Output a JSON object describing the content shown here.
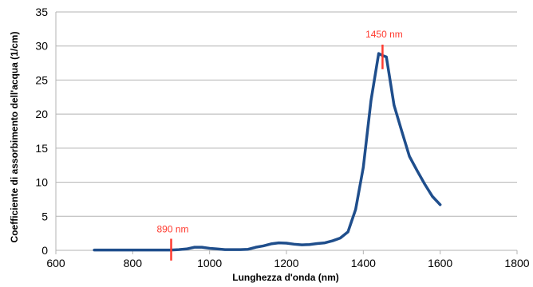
{
  "chart_data": {
    "type": "line",
    "xlabel": "Lunghezza d'onda (nm)",
    "ylabel": "Coefficiente di assorbimento dell'acqua (1/cm)",
    "xlim": [
      600,
      1800
    ],
    "ylim": [
      0,
      35
    ],
    "xticks": [
      600,
      800,
      1000,
      1200,
      1400,
      1600,
      1800
    ],
    "yticks": [
      0,
      5,
      10,
      15,
      20,
      25,
      30,
      35
    ],
    "grid": "horizontal",
    "legend": "none",
    "series": [
      {
        "color": "#1f4e8c",
        "x": [
          700,
          750,
          800,
          850,
          900,
          920,
          940,
          960,
          980,
          1000,
          1020,
          1040,
          1060,
          1080,
          1100,
          1120,
          1140,
          1160,
          1180,
          1200,
          1220,
          1240,
          1260,
          1280,
          1300,
          1320,
          1340,
          1360,
          1380,
          1400,
          1420,
          1440,
          1450,
          1460,
          1480,
          1500,
          1520,
          1540,
          1560,
          1580,
          1600
        ],
        "y": [
          0.05,
          0.05,
          0.05,
          0.05,
          0.05,
          0.1,
          0.2,
          0.45,
          0.45,
          0.3,
          0.2,
          0.1,
          0.1,
          0.1,
          0.15,
          0.45,
          0.65,
          0.95,
          1.1,
          1.05,
          0.9,
          0.8,
          0.85,
          1.0,
          1.1,
          1.4,
          1.8,
          2.7,
          6.0,
          12.2,
          22.0,
          28.9,
          28.6,
          28.4,
          21.3,
          17.5,
          13.8,
          11.7,
          9.7,
          7.9,
          6.7
        ]
      }
    ],
    "annotations": [
      {
        "label": "890 nm",
        "x": 900,
        "color": "#ff3b30"
      },
      {
        "label": "1450 nm",
        "x": 1450,
        "color": "#ff3b30"
      }
    ]
  }
}
